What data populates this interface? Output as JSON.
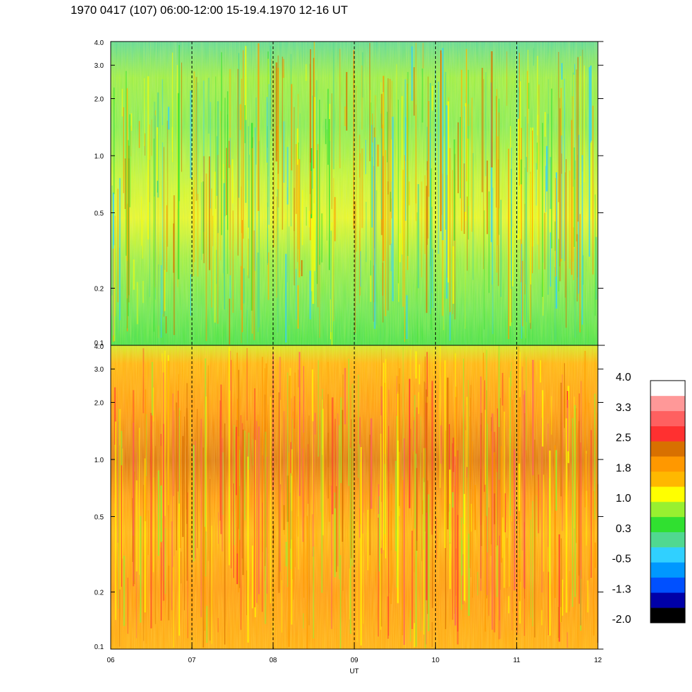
{
  "title": "1970 0417 (107) 06:00-12:00 15-19.4.1970  12-16 UT",
  "chart_data": {
    "type": "heatmap",
    "title": "1970 0417 (107) 06:00-12:00 15-19.4.1970  12-16 UT",
    "xlabel": "UT",
    "xlim": [
      6,
      12
    ],
    "x_ticks": [
      6,
      7,
      8,
      9,
      10,
      11,
      12
    ],
    "x_tick_labels": [
      "06",
      "07",
      "08",
      "09",
      "10",
      "11",
      "12"
    ],
    "y_scale": "log",
    "panels": [
      {
        "name": "upper",
        "ylim": [
          0.1,
          4.0
        ],
        "y_ticks": [
          0.1,
          0.2,
          0.5,
          1.0,
          2.0,
          3.0,
          4.0
        ],
        "y_tick_labels": [
          "0.1",
          "0.2",
          "0.5",
          "1.0",
          "2.0",
          "3.0",
          "4.0"
        ],
        "dominant_level": 0.5
      },
      {
        "name": "lower",
        "ylim": [
          0.1,
          4.0
        ],
        "y_ticks": [
          0.1,
          0.2,
          0.5,
          1.0,
          2.0,
          3.0,
          4.0
        ],
        "y_tick_labels": [
          "0.1",
          "0.2",
          "0.5",
          "1.0",
          "2.0",
          "3.0",
          "4.0"
        ],
        "dominant_level": 1.9
      }
    ],
    "dashed_gridlines_x": [
      7,
      8,
      9,
      10,
      11
    ],
    "colorbar": {
      "range": [
        -2.0,
        4.0
      ],
      "labels": [
        "4.0",
        "3.3",
        "2.5",
        "1.8",
        "1.0",
        "0.3",
        "-0.5",
        "-1.3",
        "-2.0"
      ],
      "colors": [
        "#000000",
        "#0000a8",
        "#0050ff",
        "#0098ff",
        "#30d0ff",
        "#50d890",
        "#30e030",
        "#98f030",
        "#ffff00",
        "#ffb800",
        "#ff9800",
        "#d87000",
        "#ff3030",
        "#ff6060",
        "#ff9898",
        "#ffffff"
      ]
    }
  }
}
